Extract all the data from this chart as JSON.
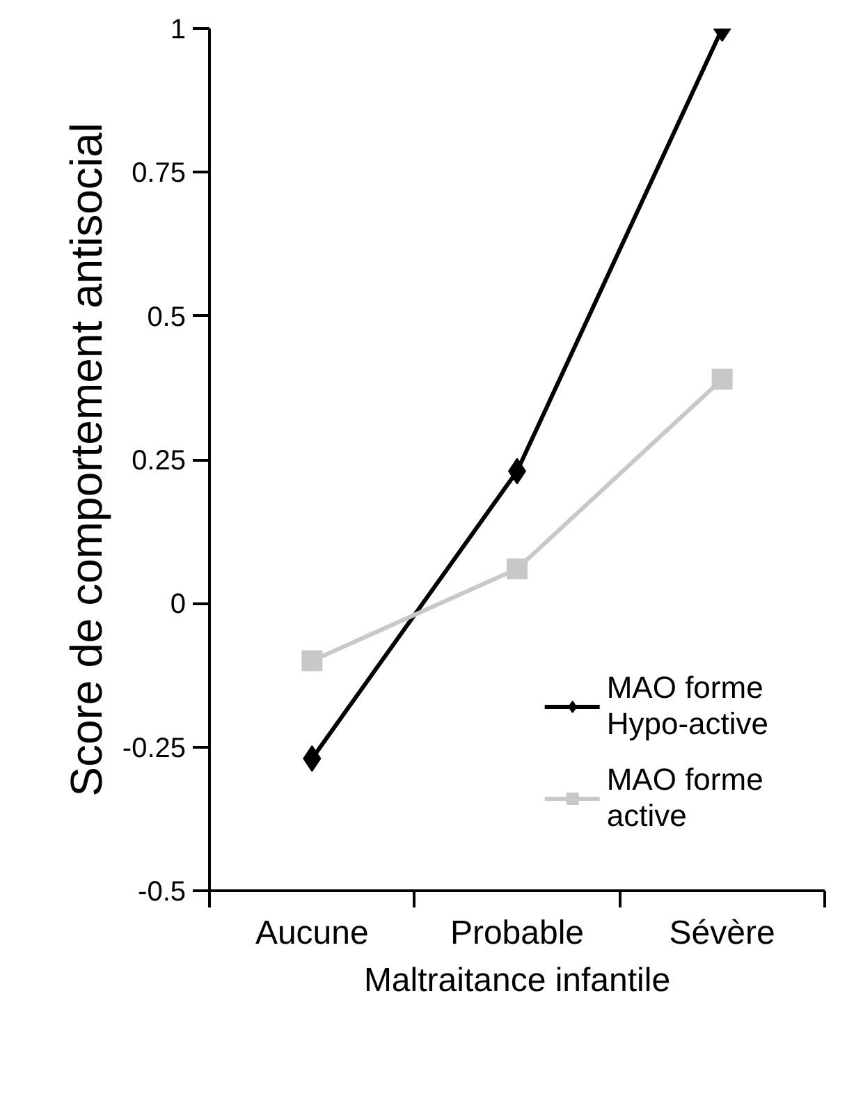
{
  "chart_data": {
    "type": "line",
    "xlabel": "Maltraitance infantile",
    "ylabel": "Score de comportement antisocial",
    "categories": [
      "Aucune",
      "Probable",
      "Sévère"
    ],
    "series": [
      {
        "name": "MAO forme Hypo-active",
        "color": "#000000",
        "marker": "diamond",
        "values": [
          -0.27,
          0.23,
          1.0
        ]
      },
      {
        "name": "MAO forme active",
        "color": "#c8c8c8",
        "marker": "square",
        "values": [
          -0.1,
          0.06,
          0.39
        ]
      }
    ],
    "ylim": [
      -0.5,
      1
    ],
    "yticks": [
      -0.5,
      -0.25,
      0,
      0.25,
      0.5,
      0.75,
      1
    ],
    "grid": false,
    "legend": "bottom right"
  }
}
